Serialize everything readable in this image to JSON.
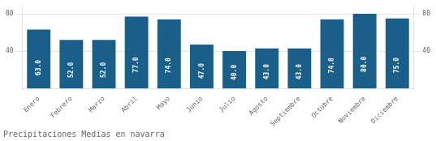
{
  "chart_data": {
    "type": "bar",
    "title": "Precipitaciones Medias en navarra",
    "categories": [
      "Enero",
      "Febrero",
      "Marzo",
      "Abril",
      "Mayo",
      "Junio",
      "Julio",
      "Agosto",
      "Septiembre",
      "Octubre",
      "Noviembre",
      "Diciembre"
    ],
    "values": [
      63.0,
      52.0,
      52.0,
      77.0,
      74.0,
      47.0,
      40.0,
      43.0,
      43.0,
      74.0,
      80.0,
      75.0
    ],
    "value_labels": [
      "63.0",
      "52.0",
      "52.0",
      "77.0",
      "74.0",
      "47.0",
      "40.0",
      "43.0",
      "43.0",
      "74.0",
      "80.0",
      "75.0"
    ],
    "color": "#1a5f8a",
    "data_labels": true,
    "ylim": [
      0,
      88
    ],
    "yticks": [
      40,
      80
    ],
    "y2lim": [
      0,
      88
    ],
    "y2ticks": [
      40,
      80
    ],
    "grid": true
  }
}
